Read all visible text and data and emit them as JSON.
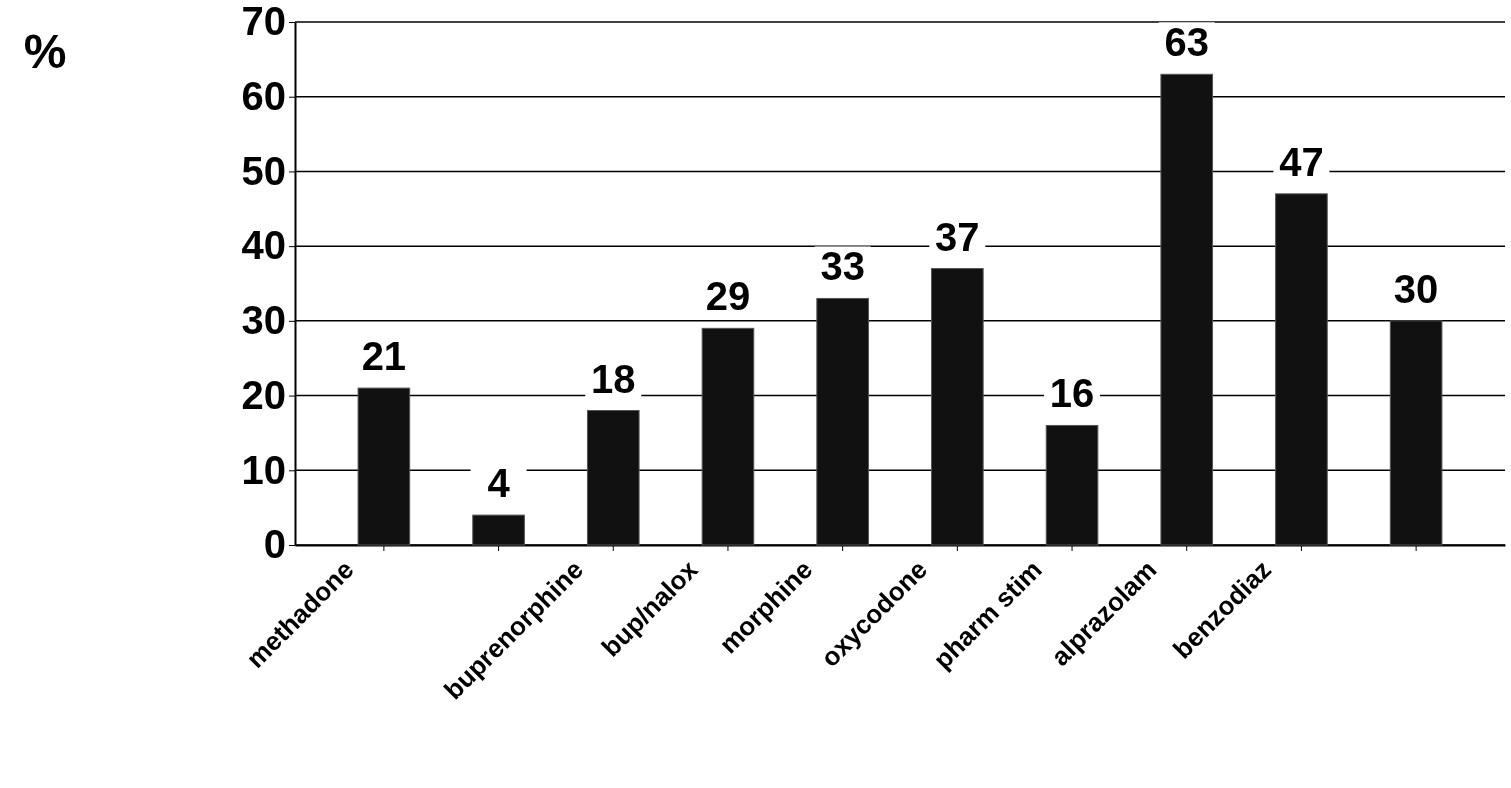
{
  "chart_data": {
    "type": "bar",
    "ylabel": "%",
    "categories": [
      "methadone",
      null,
      "buprenorphine",
      "bup/nalox",
      "morphine",
      "oxycodone",
      "pharm stim",
      "alprazolam",
      "benzodiaz",
      null
    ],
    "values": [
      21,
      4,
      18,
      29,
      33,
      37,
      16,
      63,
      47,
      30
    ],
    "color": "#111111",
    "ylim": [
      0,
      70
    ],
    "yticks": [
      0,
      10,
      20,
      30,
      40,
      50,
      60,
      70
    ],
    "grid": "y",
    "data_labels": true
  }
}
